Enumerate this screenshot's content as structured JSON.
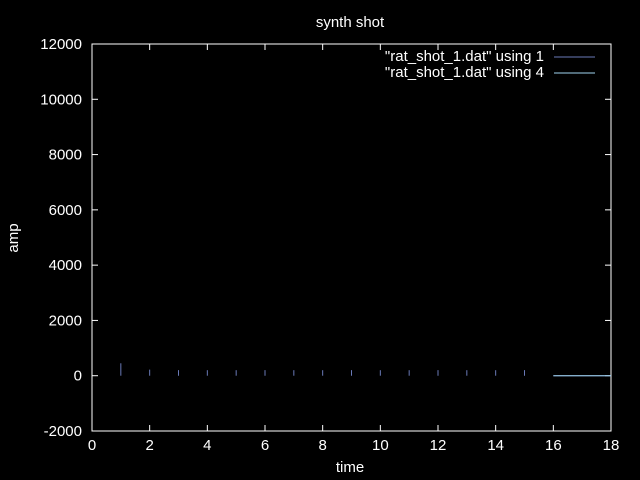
{
  "chart_data": {
    "type": "line",
    "title": "synth shot",
    "xlabel": "time",
    "ylabel": "amp",
    "xlim": [
      0,
      18
    ],
    "ylim": [
      -2000,
      12000
    ],
    "xticks": [
      0,
      2,
      4,
      6,
      8,
      10,
      12,
      14,
      16,
      18
    ],
    "yticks": [
      -2000,
      0,
      2000,
      4000,
      6000,
      8000,
      10000,
      12000
    ],
    "grid": false,
    "legend_position": "top-right",
    "series": [
      {
        "name": "\"rat_shot_1.dat\" using 1",
        "color": "#6a7ab8",
        "x": [
          16,
          18
        ],
        "y": [
          0,
          0
        ]
      },
      {
        "name": "\"rat_shot_1.dat\" using 4",
        "color": "#9fd3ef",
        "x": [
          16,
          18
        ],
        "y": [
          0,
          0
        ]
      }
    ],
    "spikes": {
      "color": "#6a7ab8",
      "x": [
        1,
        2,
        3,
        4,
        5,
        6,
        7,
        8,
        9,
        10,
        11,
        12,
        13,
        14,
        15
      ],
      "y": [
        450,
        220,
        200,
        200,
        200,
        200,
        200,
        200,
        200,
        200,
        200,
        200,
        200,
        200,
        200
      ]
    }
  }
}
